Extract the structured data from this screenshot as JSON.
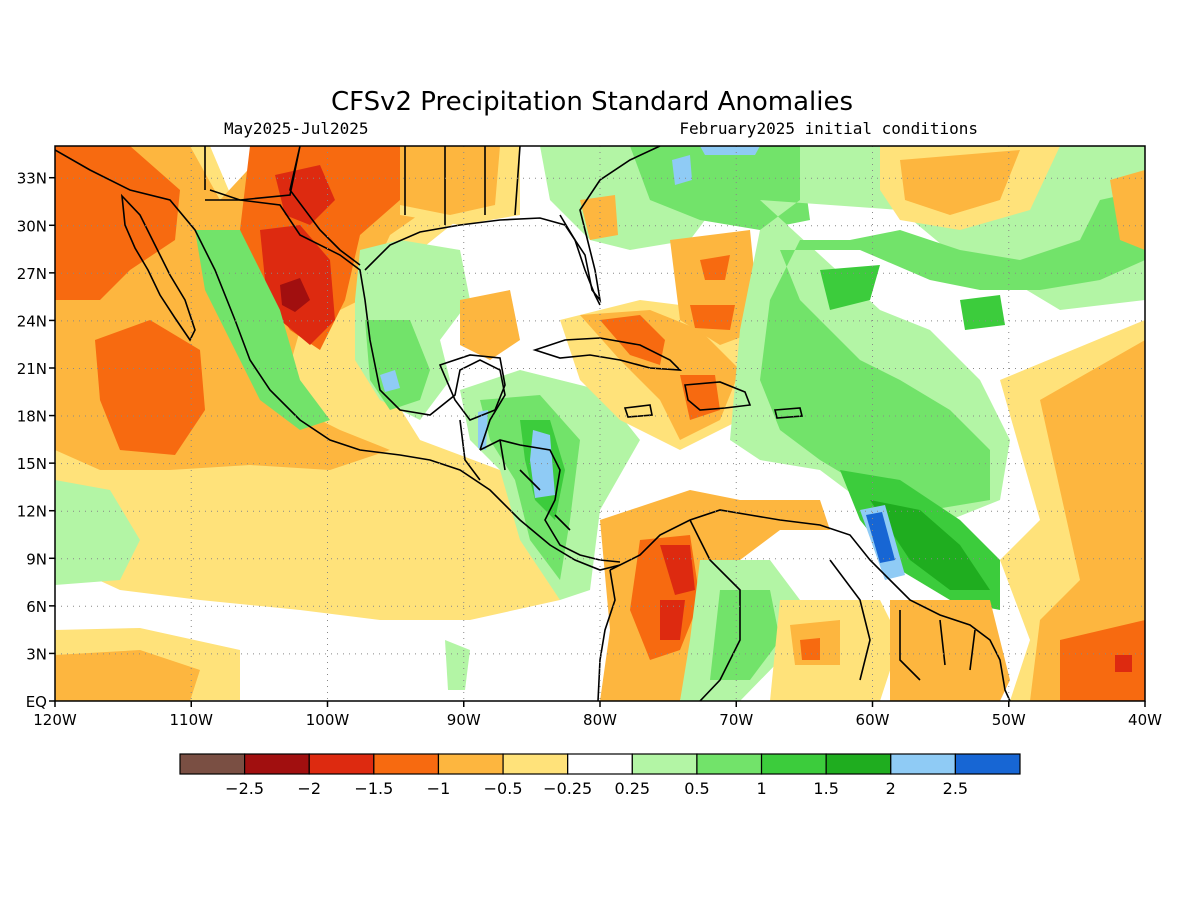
{
  "header": {
    "title": "CFSv2 Precipitation Standard Anomalies",
    "period": "May2025-Jul2025",
    "init": "February2025 initial conditions"
  },
  "map": {
    "lat_labels": [
      "33N",
      "30N",
      "27N",
      "24N",
      "21N",
      "18N",
      "15N",
      "12N",
      "9N",
      "6N",
      "3N",
      "EQ"
    ],
    "lat_values": [
      33,
      30,
      27,
      24,
      21,
      18,
      15,
      12,
      9,
      6,
      3,
      0
    ],
    "lon_labels": [
      "120W",
      "110W",
      "100W",
      "90W",
      "80W",
      "70W",
      "60W",
      "50W",
      "40W"
    ],
    "lon_values": [
      -120,
      -110,
      -100,
      -90,
      -80,
      -70,
      -60,
      -50,
      -40
    ],
    "grid": "dotted"
  },
  "colorbar": {
    "labels": [
      "-2.5",
      "-2",
      "-1.5",
      "-1",
      "-0.5",
      "-0.25",
      "0.25",
      "0.5",
      "1",
      "1.5",
      "2",
      "2.5"
    ],
    "colors": [
      "#7a4f43",
      "#a10f0f",
      "#dd2a10",
      "#f76a10",
      "#fdb63f",
      "#ffe27a",
      "#ffffff",
      "#b3f5a5",
      "#72e36a",
      "#3ccc3c",
      "#1fad1f",
      "#8fcbf5",
      "#1766d4"
    ]
  },
  "palette": {
    "brown": "#7a4f43",
    "darkred": "#a10f0f",
    "red": "#dd2a10",
    "orange": "#f76a10",
    "lorange": "#fdb63f",
    "yellow": "#ffe27a",
    "white": "#ffffff",
    "lgreen": "#b3f5a5",
    "green": "#72e36a",
    "mgreen": "#3ccc3c",
    "dgreen": "#1fad1f",
    "lblue": "#8fcbf5",
    "blue": "#1766d4"
  }
}
